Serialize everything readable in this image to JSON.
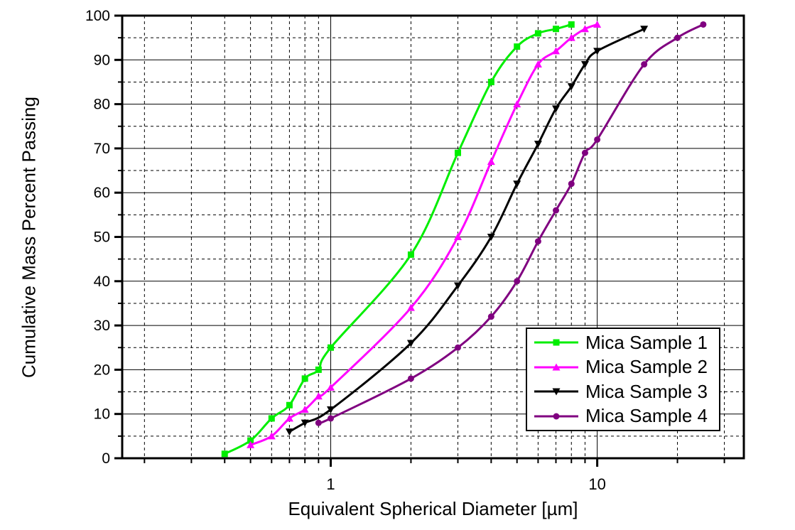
{
  "figure": {
    "background": "#ffffff",
    "grid_color": "#000000"
  },
  "chart_data": {
    "type": "line",
    "title": "",
    "xlabel": "Equivalent Spherical Diameter [µm]",
    "ylabel": "Cumulative Mass Percent Passing",
    "x_scale": "log",
    "xlim": [
      0.165,
      35.5
    ],
    "ylim": [
      0,
      100
    ],
    "x_major_ticks": [
      1,
      10
    ],
    "x_major_tick_labels": [
      "1",
      "10"
    ],
    "x_minor_ticks": [
      0.2,
      0.3,
      0.4,
      0.5,
      0.6,
      0.7,
      0.8,
      0.9,
      2,
      3,
      4,
      5,
      6,
      7,
      8,
      9,
      20,
      30
    ],
    "y_major_ticks": [
      0,
      10,
      20,
      30,
      40,
      50,
      60,
      70,
      80,
      90,
      100
    ],
    "y_major_tick_labels": [
      "0",
      "10",
      "20",
      "30",
      "40",
      "50",
      "60",
      "70",
      "80",
      "90",
      "100"
    ],
    "y_minor_ticks": [
      5,
      15,
      25,
      35,
      45,
      55,
      65,
      75,
      85,
      95
    ],
    "grid": {
      "major": "solid",
      "minor": "dashed",
      "on": true
    },
    "legend_position": "inside-lower-right",
    "series": [
      {
        "name": "Mica Sample 1",
        "color": "#00ee00",
        "marker": "square",
        "x": [
          0.4,
          0.5,
          0.6,
          0.7,
          0.8,
          0.9,
          1,
          2,
          3,
          4,
          5,
          6,
          7,
          8
        ],
        "y": [
          1,
          4,
          9,
          12,
          18,
          20,
          25,
          46,
          69,
          85,
          93,
          96,
          97,
          98
        ]
      },
      {
        "name": "Mica Sample 2",
        "color": "#ff00ff",
        "marker": "triangle-up",
        "x": [
          0.5,
          0.6,
          0.7,
          0.8,
          0.9,
          1,
          2,
          3,
          4,
          5,
          6,
          7,
          8,
          9,
          10
        ],
        "y": [
          3,
          5,
          9,
          11,
          14,
          16,
          34,
          50,
          67,
          80,
          89,
          92,
          95,
          97,
          98
        ]
      },
      {
        "name": "Mica Sample 3",
        "color": "#000000",
        "marker": "triangle-down",
        "x": [
          0.7,
          0.8,
          1,
          2,
          3,
          4,
          5,
          6,
          7,
          8,
          9,
          10,
          15
        ],
        "y": [
          6,
          8,
          11,
          26,
          39,
          50,
          62,
          71,
          79,
          84,
          89,
          92,
          97
        ]
      },
      {
        "name": "Mica Sample 4",
        "color": "#800080",
        "marker": "circle",
        "x": [
          0.9,
          1,
          2,
          3,
          4,
          5,
          6,
          7,
          8,
          9,
          10,
          15,
          20,
          25
        ],
        "y": [
          8,
          9,
          18,
          25,
          32,
          40,
          49,
          56,
          62,
          69,
          72,
          89,
          95,
          98
        ]
      }
    ]
  }
}
